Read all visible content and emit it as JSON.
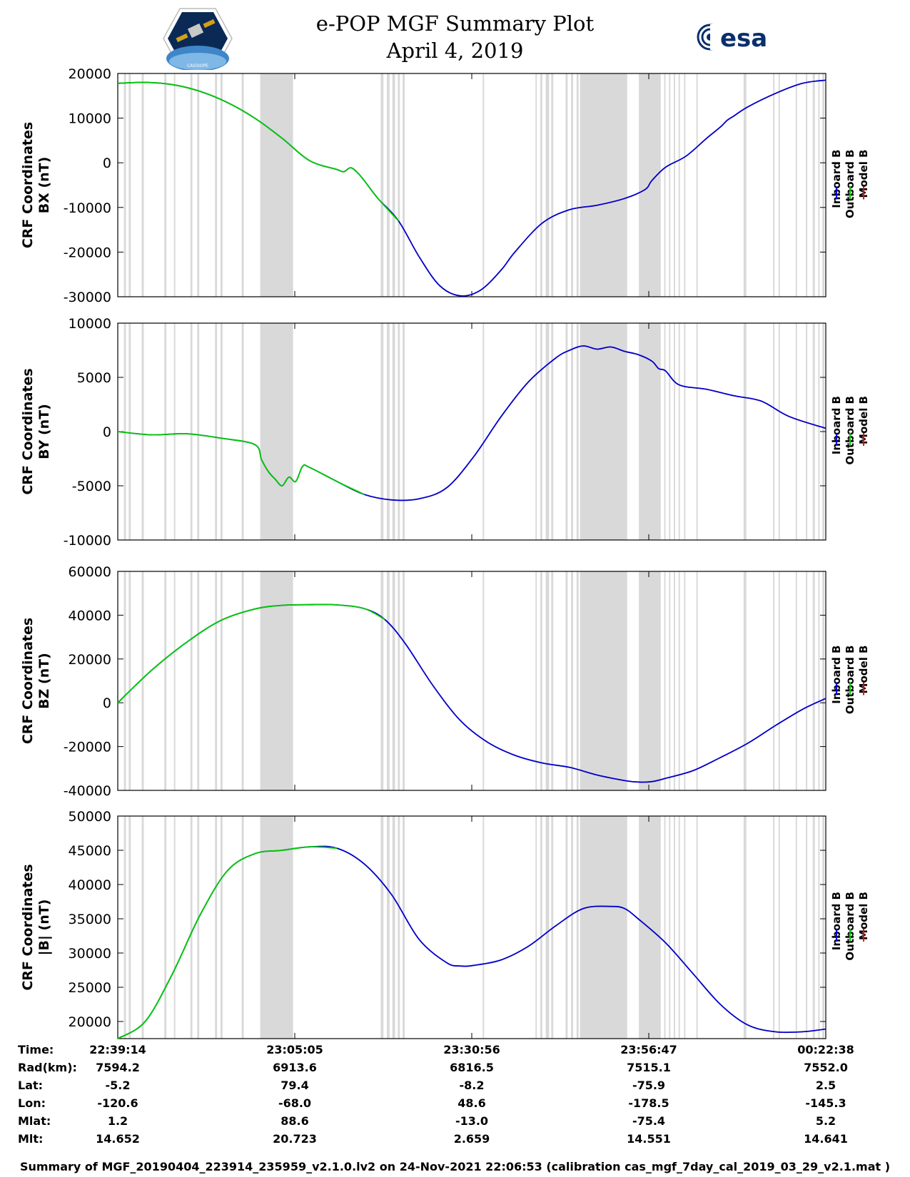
{
  "header": {
    "title_line1": "e-POP MGF Summary Plot",
    "title_line2": "April 4, 2019",
    "logo_left_caption": "CASSIOPE",
    "logo_right_text": "esa"
  },
  "legend": {
    "labels": [
      "Inboard B",
      "Outboard B",
      "Model B"
    ],
    "colors": [
      "#0000cc",
      "#00cc00",
      "#ff0000"
    ]
  },
  "chart_data": {
    "type": "line",
    "x_ticks": [
      "22:39:14",
      "23:05:05",
      "23:30:56",
      "23:56:47",
      "00:22:38"
    ],
    "x_range_minutes": [
      0,
      103.4
    ],
    "gap_color": "#d9d9d9",
    "panels": [
      {
        "id": "bx",
        "ylabel_line1": "CRF Coordinates",
        "ylabel_line2": "BX (nT)",
        "ylim": [
          -30000,
          20000
        ],
        "yticks": [
          "20000",
          "10000",
          "0",
          "-10000",
          "-20000",
          "-30000"
        ],
        "ytick_values": [
          20000,
          10000,
          0,
          -10000,
          -20000,
          -30000
        ],
        "outboard_until_min": 43.5,
        "x": [
          0,
          4,
          8,
          12,
          16,
          20,
          24,
          28,
          32,
          33,
          34,
          35,
          36,
          38,
          41,
          44,
          47,
          50,
          53,
          56,
          58,
          62,
          66,
          70,
          74,
          77,
          78,
          80,
          83,
          86,
          88,
          89,
          90,
          92,
          96,
          100,
          103.4
        ],
        "values": [
          17800,
          18000,
          17500,
          16000,
          13500,
          10000,
          5500,
          500,
          -1500,
          -2000,
          -1100,
          -2200,
          -4000,
          -8000,
          -13000,
          -21000,
          -27500,
          -29800,
          -28500,
          -24000,
          -20000,
          -13500,
          -10500,
          -9500,
          -8000,
          -6000,
          -4000,
          -1000,
          1500,
          5500,
          8000,
          9500,
          10500,
          12500,
          15500,
          17800,
          18500
        ]
      },
      {
        "id": "by",
        "ylabel_line1": "CRF Coordinates",
        "ylabel_line2": "BY (nT)",
        "ylim": [
          -10000,
          10000
        ],
        "yticks": [
          "10000",
          "5000",
          "0",
          "-5000",
          "-10000"
        ],
        "ytick_values": [
          10000,
          5000,
          0,
          -5000,
          -10000
        ],
        "outboard_until_min": 38,
        "x": [
          0,
          5,
          10,
          15,
          20,
          21,
          22,
          23,
          24,
          25,
          26,
          27,
          28,
          32,
          36,
          40,
          44,
          48,
          52,
          56,
          60,
          64,
          66,
          68,
          70,
          72,
          74,
          76,
          78,
          79,
          80,
          82,
          86,
          90,
          94,
          98,
          103.4
        ],
        "values": [
          0,
          -300,
          -200,
          -600,
          -1200,
          -2600,
          -3700,
          -4400,
          -5000,
          -4200,
          -4600,
          -3200,
          -3300,
          -4600,
          -5800,
          -6300,
          -6200,
          -5200,
          -2300,
          1400,
          4600,
          6800,
          7500,
          7900,
          7600,
          7800,
          7400,
          7100,
          6500,
          5800,
          5600,
          4300,
          3900,
          3300,
          2800,
          1400,
          300
        ]
      },
      {
        "id": "bz",
        "ylabel_line1": "CRF Coordinates",
        "ylabel_line2": "BZ (nT)",
        "ylim": [
          -40000,
          60000
        ],
        "yticks": [
          "60000",
          "40000",
          "20000",
          "0",
          "-20000",
          "-40000"
        ],
        "ytick_values": [
          60000,
          40000,
          20000,
          0,
          -20000,
          -40000
        ],
        "outboard_until_min": 40.5,
        "x": [
          0,
          5,
          10,
          15,
          20,
          24,
          28,
          32,
          36,
          39,
          42,
          46,
          50,
          54,
          58,
          62,
          66,
          70,
          74,
          76,
          78,
          80,
          84,
          88,
          92,
          96,
          100,
          103.4
        ],
        "values": [
          0,
          15000,
          27500,
          37500,
          42800,
          44500,
          44800,
          44700,
          43000,
          38000,
          27000,
          8000,
          -8000,
          -18000,
          -24000,
          -27500,
          -29500,
          -33000,
          -35500,
          -36200,
          -36000,
          -34500,
          -31000,
          -25000,
          -18500,
          -10500,
          -3000,
          2000
        ]
      },
      {
        "id": "bmag",
        "ylabel_line1": "CRF Coordinates",
        "ylabel_line2": "|B| (nT)",
        "ylim": [
          17500,
          50000
        ],
        "yticks": [
          "50000",
          "45000",
          "40000",
          "35000",
          "30000",
          "25000",
          "20000"
        ],
        "ytick_values": [
          50000,
          45000,
          40000,
          35000,
          30000,
          25000,
          20000
        ],
        "outboard_until_min": 33,
        "x": [
          0,
          4,
          8,
          12,
          16,
          20,
          24,
          28,
          32,
          36,
          40,
          44,
          48,
          50,
          52,
          56,
          60,
          64,
          68,
          72,
          74,
          76,
          80,
          84,
          88,
          92,
          96,
          100,
          103.4
        ],
        "values": [
          17500,
          20000,
          27000,
          35500,
          42000,
          44500,
          45000,
          45500,
          45300,
          43000,
          38500,
          32000,
          28600,
          28100,
          28200,
          29000,
          31000,
          34000,
          36500,
          36800,
          36500,
          35000,
          31500,
          27000,
          22500,
          19500,
          18500,
          18500,
          18900
        ]
      }
    ],
    "gaps": [
      [
        0.9,
        1.2
      ],
      [
        1.6,
        1.9
      ],
      [
        3.5,
        3.8
      ],
      [
        6.8,
        7.1
      ],
      [
        8.2,
        8.4
      ],
      [
        10.6,
        10.9
      ],
      [
        11.6,
        11.9
      ],
      [
        14.2,
        14.5
      ],
      [
        15.0,
        15.3
      ],
      [
        18.1,
        18.4
      ],
      [
        20.8,
        25.6
      ],
      [
        38.4,
        38.8
      ],
      [
        39.3,
        39.7
      ],
      [
        40.1,
        40.5
      ],
      [
        40.9,
        41.2
      ],
      [
        41.6,
        41.9
      ],
      [
        53.3,
        53.5
      ],
      [
        61.0,
        61.2
      ],
      [
        61.7,
        62.0
      ],
      [
        62.5,
        62.8
      ],
      [
        62.7,
        63.0
      ],
      [
        63.3,
        63.6
      ],
      [
        65.4,
        65.7
      ],
      [
        66.2,
        66.5
      ],
      [
        67.0,
        67.3
      ],
      [
        67.5,
        74.4
      ],
      [
        76.1,
        79.3
      ],
      [
        79.8,
        80.0
      ],
      [
        80.5,
        80.7
      ],
      [
        81.2,
        81.4
      ],
      [
        81.9,
        82.1
      ],
      [
        82.7,
        82.9
      ],
      [
        84.5,
        84.7
      ],
      [
        91.4,
        91.8
      ],
      [
        95.7,
        95.9
      ],
      [
        96.5,
        96.7
      ],
      [
        99.0,
        99.2
      ],
      [
        100.5,
        100.7
      ],
      [
        101.5,
        101.8
      ],
      [
        102.3,
        102.5
      ],
      [
        102.9,
        103.2
      ]
    ]
  },
  "info_table": {
    "labels": [
      "Time:",
      "Rad(km):",
      "Lat:",
      "Lon:",
      "Mlat:",
      "Mlt:"
    ],
    "columns": [
      [
        "22:39:14",
        "7594.2",
        "-5.2",
        "-120.6",
        "1.2",
        "14.652"
      ],
      [
        "23:05:05",
        "6913.6",
        "79.4",
        "-68.0",
        "88.6",
        "20.723"
      ],
      [
        "23:30:56",
        "6816.5",
        "-8.2",
        "48.6",
        "-13.0",
        "2.659"
      ],
      [
        "23:56:47",
        "7515.1",
        "-75.9",
        "-178.5",
        "-75.4",
        "14.551"
      ],
      [
        "00:22:38",
        "7552.0",
        "2.5",
        "-145.3",
        "5.2",
        "14.641"
      ]
    ]
  },
  "footer": "Summary of MGF_20190404_223914_235959_v2.1.0.lv2 on 24-Nov-2021 22:06:53 (calibration cas_mgf_7day_cal_2019_03_29_v2.1.mat )"
}
